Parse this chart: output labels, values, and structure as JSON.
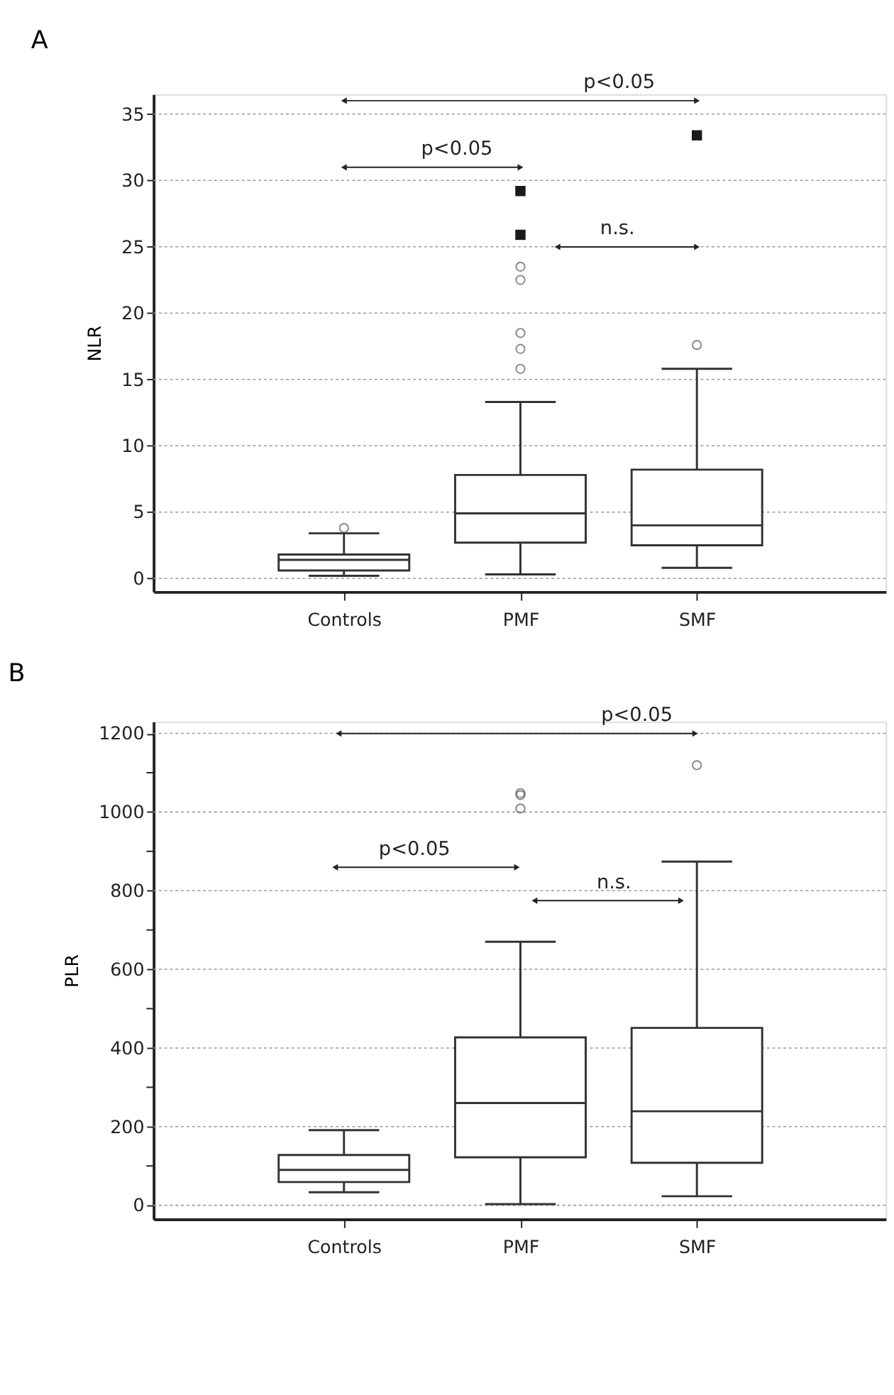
{
  "chart_data": [
    {
      "type": "box",
      "title": "A",
      "ylabel": "NLR",
      "categories": [
        "Controls",
        "PMF",
        "SMF"
      ],
      "ylim": [
        -1,
        36.5
      ],
      "yticks": [
        0,
        5,
        10,
        15,
        20,
        25,
        30,
        35
      ],
      "grid": "y",
      "annotations": [
        "p<0.05",
        "p<0.05",
        "n.s."
      ],
      "series": [
        {
          "color": "#333333",
          "boxes": [
            {
              "low": 0.2,
              "q1": 0.6,
              "median": 1.4,
              "q3": 1.8,
              "high": 3.4,
              "outliers": [
                3.8
              ]
            },
            {
              "low": 0.3,
              "q1": 2.7,
              "median": 4.9,
              "q3": 7.8,
              "high": 13.3,
              "outliers": [
                15.8,
                17.3,
                18.5,
                22.5,
                23.5
              ]
            },
            {
              "low": 0.8,
              "q1": 2.5,
              "median": 4.0,
              "q3": 8.2,
              "high": 15.8,
              "outliers": [
                17.6
              ]
            }
          ]
        },
        {
          "type": "scatter",
          "marker": "square",
          "color": "#1a1a1a",
          "x": [
            "PMF",
            "PMF",
            "SMF"
          ],
          "values": [
            29.2,
            25.9,
            33.4
          ]
        }
      ]
    },
    {
      "type": "box",
      "title": "B",
      "ylabel": "PLR",
      "categories": [
        "Controls",
        "PMF",
        "SMF"
      ],
      "ylim": [
        -35,
        1230
      ],
      "yticks": [
        0,
        {
          "value": 100,
          "label": null
        },
        200,
        {
          "value": 300,
          "label": null
        },
        400,
        {
          "value": 500,
          "label": null
        },
        600,
        {
          "value": 700,
          "label": null
        },
        800,
        {
          "value": 900,
          "label": null
        },
        1000,
        {
          "value": 1100,
          "label": null
        },
        1200
      ],
      "grid": "y",
      "annotations": [
        "p<0.05",
        "p<0.05",
        "n.s."
      ],
      "series": [
        {
          "color": "#333333",
          "boxes": [
            {
              "low": 33,
              "q1": 59,
              "median": 90,
              "q3": 128,
              "high": 191
            },
            {
              "low": 3,
              "q1": 122,
              "median": 260,
              "q3": 427,
              "high": 670,
              "outliers": [
                1009,
                1043,
                1048
              ]
            },
            {
              "low": 23,
              "q1": 108,
              "median": 239,
              "q3": 451,
              "high": 874,
              "outliers": [
                1119
              ]
            }
          ]
        }
      ]
    }
  ]
}
